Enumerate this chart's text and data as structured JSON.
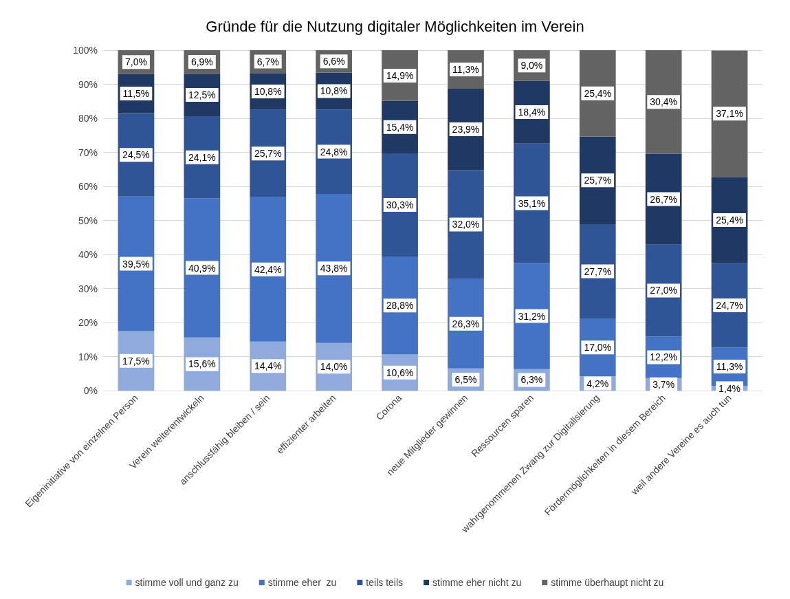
{
  "chart_data": {
    "type": "bar",
    "title": "Gründe für die Nutzung digitaler Möglichkeiten im Verein",
    "stacked": true,
    "categories": [
      "Eigeninitiative von einzelnen Person",
      "Verein weiterentwickeln",
      "anschlussfähig bleiben / sein",
      "effizienter arbeiten",
      "Corona",
      "neue Mitglieder gewinnen",
      "Ressourcen sparen",
      "wahrgenommenen Zwang zur Digitalisierung",
      "Fördermöglichkeiten in diesem Bereich",
      "weil andere Vereine es auch tun"
    ],
    "series": [
      {
        "name": "stimme voll und ganz zu",
        "color": "#8faadc",
        "values": [
          17.5,
          15.6,
          14.4,
          14.0,
          10.6,
          6.5,
          6.3,
          4.2,
          3.7,
          1.4
        ],
        "value_labels": [
          "17,5%",
          "15,6%",
          "14,4%",
          "14,0%",
          "10,6%",
          "6,5%",
          "6,3%",
          "4,2%",
          "3,7%",
          "1,4%"
        ]
      },
      {
        "name": "stimme eher  zu",
        "color": "#4472c4",
        "values": [
          39.5,
          40.9,
          42.4,
          43.8,
          28.8,
          26.3,
          31.2,
          17.0,
          12.2,
          11.3
        ],
        "value_labels": [
          "39,5%",
          "40,9%",
          "42,4%",
          "43,8%",
          "28,8%",
          "26,3%",
          "31,2%",
          "17,0%",
          "12,2%",
          "11,3%"
        ]
      },
      {
        "name": "teils teils",
        "color": "#2f5597",
        "values": [
          24.5,
          24.1,
          25.7,
          24.8,
          30.3,
          32.0,
          35.1,
          27.7,
          27.0,
          24.7
        ],
        "value_labels": [
          "24,5%",
          "24,1%",
          "25,7%",
          "24,8%",
          "30,3%",
          "32,0%",
          "35,1%",
          "27,7%",
          "27,0%",
          "24,7%"
        ]
      },
      {
        "name": "stimme eher nicht zu",
        "color": "#203864",
        "values": [
          11.5,
          12.5,
          10.8,
          10.8,
          15.4,
          23.9,
          18.4,
          25.7,
          26.7,
          25.4
        ],
        "value_labels": [
          "11,5%",
          "12,5%",
          "10,8%",
          "10,8%",
          "15,4%",
          "23,9%",
          "18,4%",
          "25,7%",
          "26,7%",
          "25,4%"
        ]
      },
      {
        "name": "stimme überhaupt nicht zu",
        "color": "#636363",
        "values": [
          7.0,
          6.9,
          6.7,
          6.6,
          14.9,
          11.3,
          9.0,
          25.4,
          30.4,
          37.1
        ],
        "value_labels": [
          "7,0%",
          "6,9%",
          "6,7%",
          "6,6%",
          "14,9%",
          "11,3%",
          "9,0%",
          "25,4%",
          "30,4%",
          "37,1%"
        ]
      }
    ],
    "ylim": [
      0,
      100
    ],
    "yticks": [
      {
        "value": 0,
        "label": "0%"
      },
      {
        "value": 10,
        "label": "10%"
      },
      {
        "value": 20,
        "label": "20%"
      },
      {
        "value": 30,
        "label": "30%"
      },
      {
        "value": 40,
        "label": "40%"
      },
      {
        "value": 50,
        "label": "50%"
      },
      {
        "value": 60,
        "label": "60%"
      },
      {
        "value": 70,
        "label": "70%"
      },
      {
        "value": 80,
        "label": "80%"
      },
      {
        "value": 90,
        "label": "90%"
      },
      {
        "value": 100,
        "label": "100%"
      }
    ],
    "grid": "y",
    "legend": "bottom"
  }
}
